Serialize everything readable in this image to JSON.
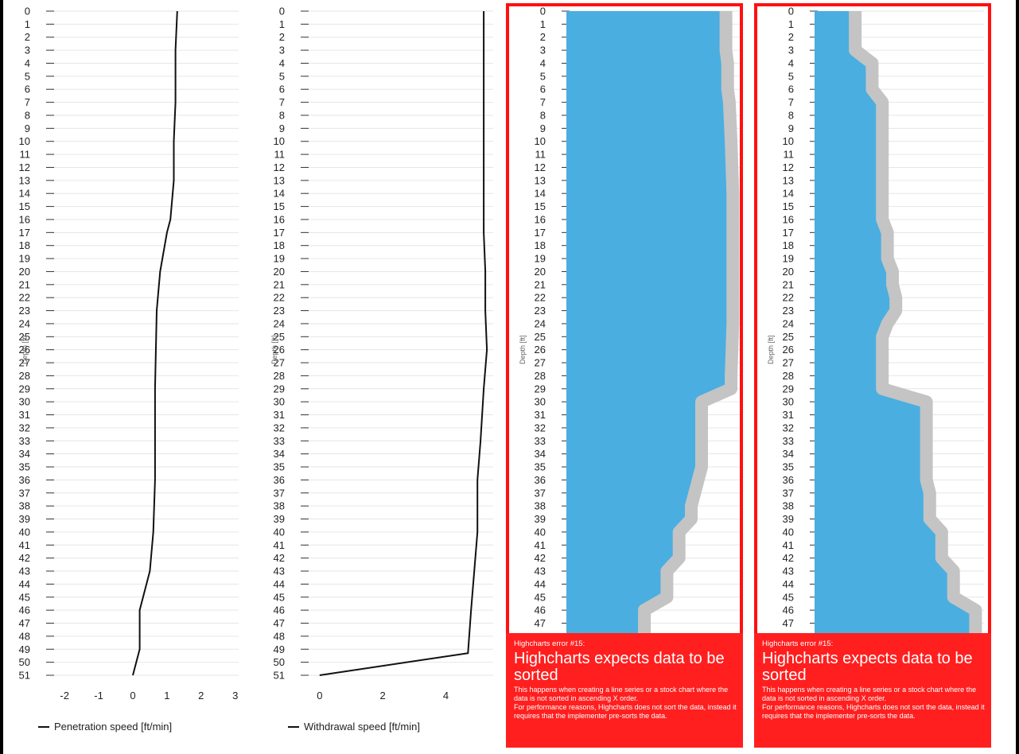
{
  "colors": {
    "line": "#111111",
    "fill": "#4aaee0",
    "band": "#c4c4c4",
    "grid": "#e6e6e6",
    "error_red": "#ff1f1f",
    "error_border": "#ff1010"
  },
  "depth_ticks": [
    "0",
    "1",
    "2",
    "3",
    "4",
    "5",
    "6",
    "7",
    "8",
    "9",
    "10",
    "11",
    "12",
    "13",
    "14",
    "15",
    "16",
    "17",
    "18",
    "19",
    "20",
    "21",
    "22",
    "23",
    "24",
    "25",
    "26",
    "27",
    "28",
    "29",
    "30",
    "31",
    "32",
    "33",
    "34",
    "35",
    "36",
    "37",
    "38",
    "39",
    "40",
    "41",
    "42",
    "43",
    "44",
    "45",
    "46",
    "47",
    "48",
    "49",
    "50",
    "51"
  ],
  "chart_data": [
    {
      "type": "line",
      "ylabel": "Depth [ft]",
      "ylim": [
        0,
        51
      ],
      "xlim": [
        -2.4,
        3.1
      ],
      "x_ticks": [
        "-2",
        "-1",
        "0",
        "1",
        "2",
        "3"
      ],
      "x_tick_values": [
        -2,
        -1,
        0,
        1,
        2,
        3
      ],
      "series": [
        {
          "name": "Penetration speed [ft/min]",
          "points": [
            [
              1.3,
              0
            ],
            [
              1.25,
              3
            ],
            [
              1.25,
              7
            ],
            [
              1.2,
              10
            ],
            [
              1.2,
              13
            ],
            [
              1.1,
              16
            ],
            [
              1.0,
              17
            ],
            [
              0.8,
              20
            ],
            [
              0.7,
              23
            ],
            [
              0.65,
              29
            ],
            [
              0.65,
              36
            ],
            [
              0.6,
              40
            ],
            [
              0.5,
              43
            ],
            [
              0.2,
              46
            ],
            [
              0.2,
              49
            ],
            [
              0.0,
              51
            ]
          ]
        }
      ]
    },
    {
      "type": "line",
      "ylabel": "Depth [ft]",
      "ylim": [
        0,
        51
      ],
      "xlim": [
        -0.5,
        5.5
      ],
      "x_ticks": [
        "0",
        "2",
        "4"
      ],
      "x_tick_values": [
        0,
        2,
        4
      ],
      "series": [
        {
          "name": "Withdrawal speed [ft/min]",
          "points": [
            [
              5.2,
              0
            ],
            [
              5.2,
              17
            ],
            [
              5.25,
              20
            ],
            [
              5.25,
              23
            ],
            [
              5.3,
              26
            ],
            [
              5.2,
              29
            ],
            [
              5.1,
              33
            ],
            [
              5.0,
              36
            ],
            [
              5.0,
              40
            ],
            [
              4.9,
              43
            ],
            [
              4.8,
              46
            ],
            [
              4.7,
              49.3
            ],
            [
              0.0,
              51
            ]
          ]
        }
      ]
    },
    {
      "type": "area",
      "ylabel": "Depth [ft]",
      "ylim": [
        0,
        51
      ],
      "xlim": [
        0,
        1
      ],
      "x_ticks": [],
      "series": [
        {
          "points": [
            [
              0.92,
              0
            ],
            [
              0.92,
              3
            ],
            [
              0.93,
              4
            ],
            [
              0.93,
              6
            ],
            [
              0.94,
              7
            ],
            [
              0.95,
              10
            ],
            [
              0.96,
              14
            ],
            [
              0.96,
              24
            ],
            [
              0.95,
              28
            ],
            [
              0.95,
              29
            ],
            [
              0.78,
              30
            ],
            [
              0.78,
              35
            ],
            [
              0.76,
              36
            ],
            [
              0.72,
              38
            ],
            [
              0.72,
              39
            ],
            [
              0.65,
              40
            ],
            [
              0.65,
              42
            ],
            [
              0.58,
              43
            ],
            [
              0.58,
              45
            ],
            [
              0.45,
              46
            ],
            [
              0.45,
              48
            ]
          ]
        }
      ]
    },
    {
      "type": "area",
      "ylabel": "Depth [ft]",
      "ylim": [
        0,
        51
      ],
      "xlim": [
        0,
        1
      ],
      "x_ticks": [],
      "series": [
        {
          "points": [
            [
              0.24,
              0
            ],
            [
              0.24,
              3
            ],
            [
              0.34,
              4
            ],
            [
              0.34,
              6
            ],
            [
              0.4,
              7
            ],
            [
              0.4,
              16
            ],
            [
              0.43,
              17
            ],
            [
              0.43,
              19
            ],
            [
              0.46,
              20
            ],
            [
              0.46,
              21
            ],
            [
              0.48,
              22
            ],
            [
              0.48,
              23
            ],
            [
              0.43,
              24
            ],
            [
              0.4,
              25
            ],
            [
              0.4,
              29
            ],
            [
              0.66,
              30
            ],
            [
              0.66,
              36
            ],
            [
              0.68,
              37
            ],
            [
              0.68,
              39
            ],
            [
              0.75,
              40
            ],
            [
              0.75,
              42
            ],
            [
              0.82,
              43
            ],
            [
              0.82,
              45
            ],
            [
              0.95,
              46
            ],
            [
              0.95,
              48
            ]
          ]
        }
      ]
    }
  ],
  "error": {
    "small": "Highcharts error #15:",
    "title": "Highcharts expects data to be sorted",
    "line1": "This happens when creating a line series or a stock chart where the data is not sorted in ascending X order.",
    "line2": "For performance reasons, Highcharts does not sort the data, instead it requires that the implementer pre-sorts the data."
  }
}
